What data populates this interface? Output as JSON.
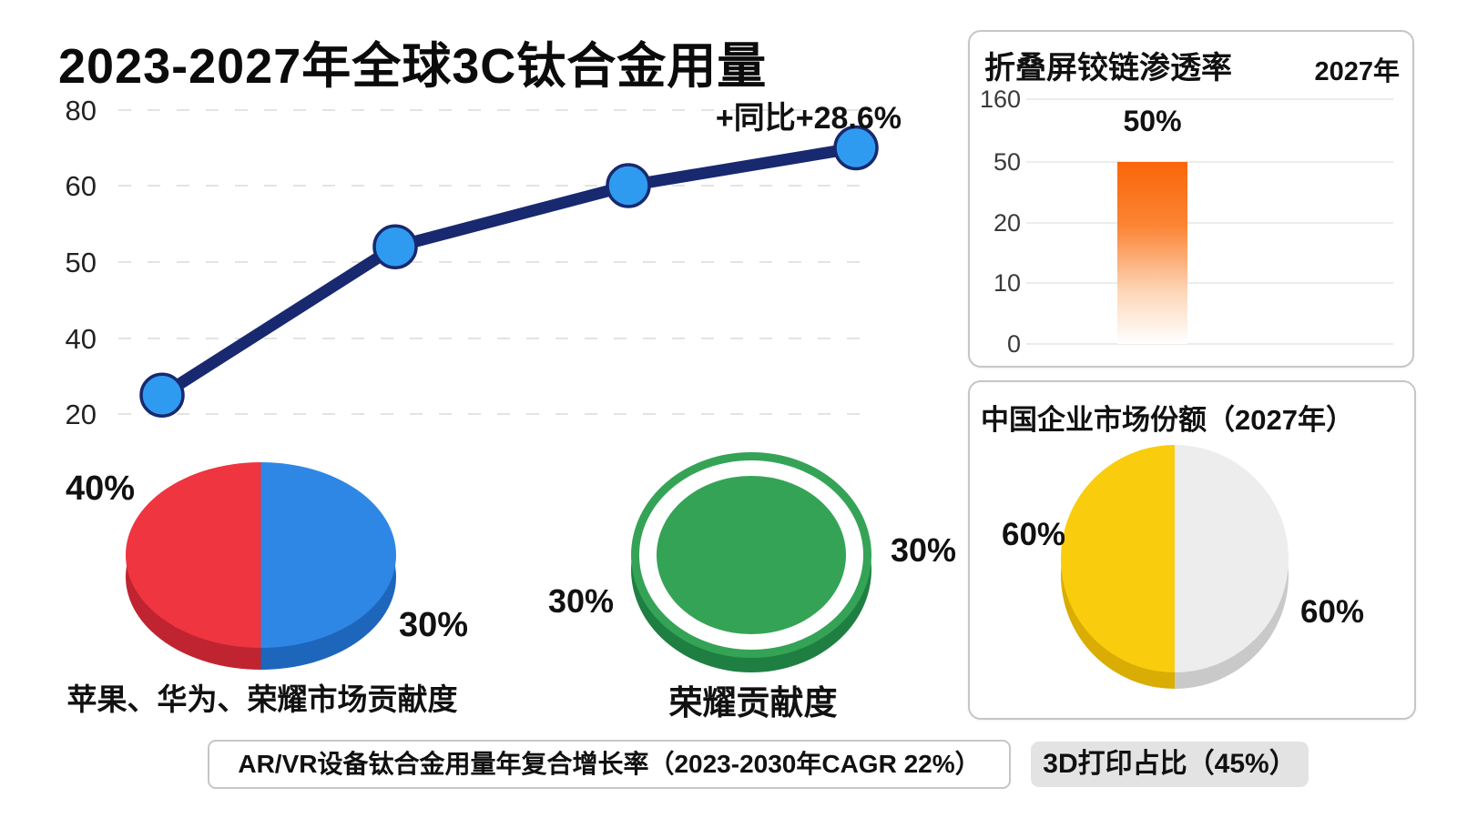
{
  "badges": {
    "cagr": "AR/VR设备钛合金用量年复合增长率（2023-2030年CAGR 22%）",
    "printing": "3D打印占比（45%）"
  },
  "colors": {
    "navy": "#18296f",
    "marker": "#2f9bf0",
    "red": "#ee3540",
    "red_dark": "#bf2430",
    "blue": "#2e87e4",
    "blue_dark": "#1d66bb",
    "green": "#35a356",
    "green_dark": "#1f7f42",
    "yellow": "#f9cd0d",
    "yellow_dark": "#d9ad04",
    "gray": "#ededed",
    "gray_dark": "#c9c9c9",
    "orange": "#fa660a",
    "grid": "#e3e3e3",
    "border": "#c6c6c6",
    "badge_bg": "#e3e3e3",
    "ink": "#111111"
  },
  "chart_data": [
    {
      "type": "line",
      "title": "2023-2027年全球3C钛合金用量",
      "y_ticks": [
        80,
        60,
        50,
        40,
        20
      ],
      "values": [
        25,
        52,
        60,
        70
      ],
      "annotation": "+同比+28.6%",
      "grid": true,
      "x_tick_labels": [],
      "line_color": "#18296f",
      "marker_color": "#2f9bf0"
    },
    {
      "type": "pie",
      "caption": "苹果、华为、荣耀市场贡献度",
      "style": "3d",
      "slices": [
        {
          "label": "40%",
          "side": "left",
          "visual_pct": 50,
          "color": "#ee3540",
          "color_dark": "#bf2430"
        },
        {
          "label": "30%",
          "side": "right",
          "visual_pct": 50,
          "color": "#2e87e4",
          "color_dark": "#1d66bb"
        }
      ]
    },
    {
      "type": "donut",
      "caption": "荣耀贡献度",
      "labels": [
        "30%",
        "30%"
      ],
      "value_label": "30%",
      "color": "#35a356"
    },
    {
      "type": "bar",
      "title": "折叠屏铰链渗透率",
      "period": "2027年",
      "categories": [
        ""
      ],
      "values": [
        50
      ],
      "bar_label": "50%",
      "y_ticks": [
        160,
        50,
        20,
        10,
        0
      ],
      "bar_color": "#fa660a",
      "grid": true
    },
    {
      "type": "pie",
      "title": "中国企业市场份额（2027年）",
      "style": "3d",
      "slices": [
        {
          "label": "60%",
          "side": "left",
          "visual_pct": 50,
          "color": "#f9cd0d",
          "color_dark": "#d9ad04"
        },
        {
          "label": "60%",
          "side": "right",
          "visual_pct": 50,
          "color": "#ededed",
          "color_dark": "#c9c9c9"
        }
      ]
    }
  ]
}
